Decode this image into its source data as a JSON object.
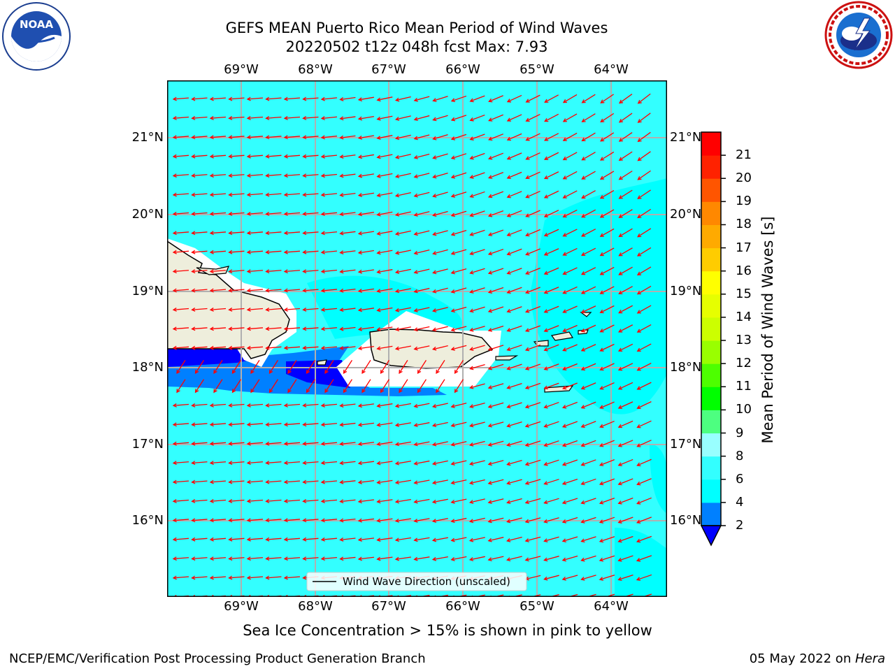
{
  "header": {
    "title_line1": "GEFS MEAN Puerto Rico Mean Period of Wind Waves",
    "title_line2": "20220502 t12z 048h fcst   Max: 7.93"
  },
  "logos": {
    "left": {
      "name": "NOAA",
      "text": "NOAA"
    },
    "right": {
      "name": "National Weather Service"
    }
  },
  "map": {
    "lon_labels": [
      "69°W",
      "68°W",
      "67°W",
      "66°W",
      "65°W",
      "64°W"
    ],
    "lat_labels": [
      "21°N",
      "20°N",
      "19°N",
      "18°N",
      "17°N",
      "16°N"
    ],
    "legend_label": "Wind Wave Direction (unscaled)",
    "colors": {
      "sea_light": "#33ffff",
      "sea_cyan": "#00ffff",
      "sea_blue": "#0080ff",
      "sea_dark": "#0000ff",
      "land": "#eeeedc",
      "arrow": "#ff0000",
      "grid": "#b0b0b0"
    }
  },
  "colorbar": {
    "title": "Mean Period of Wind Waves [s]",
    "ticks": [
      "2",
      "4",
      "6",
      "8",
      "9",
      "10",
      "11",
      "12",
      "13",
      "14",
      "15",
      "16",
      "17",
      "18",
      "19",
      "20",
      "21"
    ],
    "colors": [
      "#0080ff",
      "#00ffff",
      "#33ffff",
      "#99ffff",
      "#4dff80",
      "#00ff00",
      "#4dff00",
      "#99ff00",
      "#ccff00",
      "#e6ff00",
      "#ffff00",
      "#ffcc00",
      "#ffaa00",
      "#ff8800",
      "#ff5500",
      "#ff2200",
      "#ff0000"
    ],
    "under_color": "#0000ff"
  },
  "notes": {
    "sea_ice": "Sea Ice Concentration > 15% is shown in pink to yellow"
  },
  "footer": {
    "left": "NCEP/EMC/Verification Post Processing Product Generation Branch",
    "right_date": "05 May 2022 on ",
    "right_host": "Hera"
  }
}
